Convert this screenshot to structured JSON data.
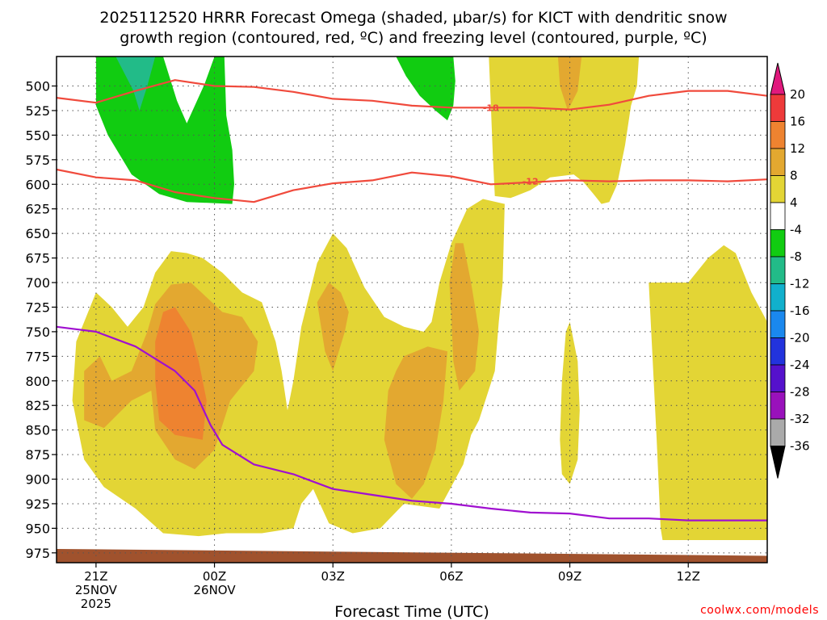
{
  "title_lines": [
    "2025112520 HRRR Forecast Omega (shaded, µbar/s) for KICT with dendritic snow",
    "growth region (contoured, red, ºC) and freezing level (contoured, purple, ºC)"
  ],
  "credit": "coolwx.com/models",
  "colors": {
    "dgz": "#f04a3c",
    "freezing": "#a010d0",
    "ground": "#a0522d",
    "grid": "#555555"
  },
  "chart_data": {
    "type": "contour",
    "xlabel": "Forecast Time (UTC)",
    "x_domain": [
      -1,
      17
    ],
    "y_domain": [
      470,
      985
    ],
    "y_axis": {
      "inverted": true,
      "ticks": [
        500,
        525,
        550,
        575,
        600,
        625,
        650,
        675,
        700,
        725,
        750,
        775,
        800,
        825,
        850,
        875,
        900,
        925,
        950,
        975
      ]
    },
    "x_ticks": [
      {
        "hour": 0,
        "lines": [
          "21Z",
          "25NOV",
          "2025"
        ]
      },
      {
        "hour": 3,
        "lines": [
          "00Z",
          "26NOV"
        ]
      },
      {
        "hour": 6,
        "lines": [
          "03Z"
        ]
      },
      {
        "hour": 9,
        "lines": [
          "06Z"
        ]
      },
      {
        "hour": 12,
        "lines": [
          "09Z"
        ]
      },
      {
        "hour": 15,
        "lines": [
          "12Z"
        ]
      }
    ],
    "grid": true,
    "colorbar": {
      "labels": [
        "20",
        "16",
        "12",
        "8",
        "4",
        "-4",
        "-8",
        "-12",
        "-16",
        "-20",
        "-24",
        "-28",
        "-32",
        "-36"
      ],
      "bins": [
        {
          "color": "#ee3a3a"
        },
        {
          "color": "#ee8330"
        },
        {
          "color": "#e3a830"
        },
        {
          "color": "#e3d535"
        },
        {
          "color": "#ffffff"
        },
        {
          "color": "#11cc11"
        },
        {
          "color": "#22bb88"
        },
        {
          "color": "#11b0cc"
        },
        {
          "color": "#1a88ee"
        },
        {
          "color": "#2233dd"
        },
        {
          "color": "#5511cc"
        },
        {
          "color": "#9911bb"
        },
        {
          "color": "#aaaaaa"
        }
      ],
      "top_color": "#e0197d",
      "bottom_color": "#000000"
    },
    "shaded_regions": [
      {
        "level": "-8 to -4",
        "color": "#11cc11",
        "points": [
          [
            0.0,
            470
          ],
          [
            0.0,
            520
          ],
          [
            0.3,
            550
          ],
          [
            0.9,
            590
          ],
          [
            1.6,
            610
          ],
          [
            2.3,
            618
          ],
          [
            3.45,
            620
          ],
          [
            3.5,
            600
          ],
          [
            3.45,
            565
          ],
          [
            3.3,
            530
          ],
          [
            3.25,
            470
          ],
          [
            3.0,
            470
          ],
          [
            2.75,
            498
          ],
          [
            2.3,
            538
          ],
          [
            2.05,
            515
          ],
          [
            1.7,
            470
          ]
        ]
      },
      {
        "level": "-12 to -8",
        "color": "#22bb88",
        "points": [
          [
            0.5,
            470
          ],
          [
            0.95,
            505
          ],
          [
            1.1,
            525
          ],
          [
            1.3,
            500
          ],
          [
            1.5,
            470
          ]
        ]
      },
      {
        "level": "-8 to -4",
        "color": "#11cc11",
        "points": [
          [
            7.6,
            470
          ],
          [
            7.85,
            490
          ],
          [
            8.2,
            510
          ],
          [
            8.6,
            525
          ],
          [
            8.9,
            535
          ],
          [
            9.05,
            520
          ],
          [
            9.1,
            495
          ],
          [
            9.05,
            470
          ]
        ]
      },
      {
        "level": "4 to 8",
        "color": "#e3d535",
        "points": [
          [
            9.95,
            470
          ],
          [
            10.0,
            520
          ],
          [
            10.05,
            570
          ],
          [
            10.1,
            612
          ],
          [
            10.5,
            614
          ],
          [
            11.0,
            606
          ],
          [
            11.5,
            593
          ],
          [
            12.1,
            590
          ],
          [
            12.35,
            598
          ],
          [
            12.6,
            610
          ],
          [
            12.8,
            620
          ],
          [
            13.0,
            618
          ],
          [
            13.2,
            600
          ],
          [
            13.4,
            560
          ],
          [
            13.55,
            520
          ],
          [
            13.7,
            500
          ],
          [
            13.75,
            470
          ]
        ]
      },
      {
        "level": "8 to 12",
        "color": "#e3a830",
        "points": [
          [
            11.7,
            470
          ],
          [
            11.75,
            500
          ],
          [
            11.95,
            525
          ],
          [
            12.2,
            505
          ],
          [
            12.3,
            470
          ]
        ]
      },
      {
        "level": "4 to 8",
        "color": "#e3d535",
        "points": [
          [
            0.0,
            710
          ],
          [
            -0.5,
            760
          ],
          [
            -0.6,
            820
          ],
          [
            -0.3,
            880
          ],
          [
            0.2,
            908
          ],
          [
            1.0,
            930
          ],
          [
            1.7,
            955
          ],
          [
            2.6,
            958
          ],
          [
            3.3,
            955
          ],
          [
            4.2,
            955
          ],
          [
            5.0,
            950
          ],
          [
            5.2,
            925
          ],
          [
            5.5,
            910
          ],
          [
            5.9,
            945
          ],
          [
            6.5,
            955
          ],
          [
            7.2,
            950
          ],
          [
            7.8,
            925
          ],
          [
            8.7,
            930
          ],
          [
            9.1,
            900
          ],
          [
            9.3,
            885
          ],
          [
            9.5,
            855
          ],
          [
            9.7,
            840
          ],
          [
            10.1,
            790
          ],
          [
            10.2,
            740
          ],
          [
            10.3,
            700
          ],
          [
            10.35,
            620
          ],
          [
            9.8,
            615
          ],
          [
            9.4,
            625
          ],
          [
            9.0,
            660
          ],
          [
            8.7,
            700
          ],
          [
            8.5,
            740
          ],
          [
            8.3,
            750
          ],
          [
            7.8,
            745
          ],
          [
            7.3,
            735
          ],
          [
            6.8,
            705
          ],
          [
            6.35,
            665
          ],
          [
            6.0,
            650
          ],
          [
            5.6,
            680
          ],
          [
            5.2,
            745
          ],
          [
            5.0,
            800
          ],
          [
            4.85,
            830
          ],
          [
            4.7,
            790
          ],
          [
            4.55,
            760
          ],
          [
            4.2,
            720
          ],
          [
            3.7,
            710
          ],
          [
            3.2,
            690
          ],
          [
            2.7,
            675
          ],
          [
            2.3,
            670
          ],
          [
            1.9,
            668
          ],
          [
            1.5,
            690
          ],
          [
            1.2,
            725
          ],
          [
            0.8,
            745
          ],
          [
            0.4,
            725
          ]
        ]
      },
      {
        "level": "8 to 12",
        "color": "#e3a830",
        "points": [
          [
            -0.3,
            790
          ],
          [
            -0.3,
            840
          ],
          [
            0.2,
            848
          ],
          [
            0.9,
            820
          ],
          [
            1.4,
            810
          ],
          [
            1.5,
            850
          ],
          [
            2.0,
            880
          ],
          [
            2.5,
            890
          ],
          [
            3.0,
            870
          ],
          [
            3.4,
            820
          ],
          [
            4.0,
            790
          ],
          [
            4.1,
            760
          ],
          [
            3.7,
            735
          ],
          [
            3.2,
            730
          ],
          [
            2.8,
            715
          ],
          [
            2.4,
            700
          ],
          [
            1.9,
            702
          ],
          [
            1.5,
            722
          ],
          [
            1.3,
            750
          ],
          [
            0.9,
            790
          ],
          [
            0.4,
            800
          ],
          [
            0.1,
            775
          ]
        ]
      },
      {
        "level": "12 to 16",
        "color": "#ee8330",
        "points": [
          [
            1.5,
            760
          ],
          [
            1.5,
            800
          ],
          [
            1.6,
            840
          ],
          [
            2.0,
            855
          ],
          [
            2.7,
            860
          ],
          [
            2.8,
            820
          ],
          [
            2.6,
            780
          ],
          [
            2.4,
            750
          ],
          [
            2.0,
            725
          ],
          [
            1.7,
            730
          ]
        ]
      },
      {
        "level": "8 to 12",
        "color": "#e3a830",
        "points": [
          [
            5.6,
            720
          ],
          [
            5.8,
            770
          ],
          [
            6.0,
            790
          ],
          [
            6.3,
            750
          ],
          [
            6.4,
            730
          ],
          [
            6.2,
            710
          ],
          [
            5.9,
            700
          ]
        ]
      },
      {
        "level": "8 to 12",
        "color": "#e3a830",
        "points": [
          [
            7.4,
            810
          ],
          [
            7.3,
            860
          ],
          [
            7.6,
            905
          ],
          [
            8.0,
            920
          ],
          [
            8.3,
            905
          ],
          [
            8.6,
            870
          ],
          [
            8.8,
            820
          ],
          [
            8.9,
            770
          ],
          [
            8.4,
            765
          ],
          [
            7.8,
            775
          ],
          [
            7.6,
            790
          ]
        ]
      },
      {
        "level": "8 to 12",
        "color": "#e3a830",
        "points": [
          [
            9.0,
            735
          ],
          [
            9.05,
            780
          ],
          [
            9.2,
            810
          ],
          [
            9.6,
            790
          ],
          [
            9.7,
            750
          ],
          [
            9.5,
            700
          ],
          [
            9.3,
            660
          ],
          [
            9.1,
            660
          ],
          [
            8.95,
            700
          ]
        ]
      },
      {
        "level": "4 to 8",
        "color": "#e3d535",
        "points": [
          [
            11.8,
            800
          ],
          [
            11.75,
            860
          ],
          [
            11.8,
            895
          ],
          [
            12.0,
            905
          ],
          [
            12.2,
            880
          ],
          [
            12.25,
            830
          ],
          [
            12.2,
            780
          ],
          [
            12.0,
            740
          ],
          [
            11.9,
            750
          ]
        ]
      },
      {
        "level": "4 to 8",
        "color": "#e3d535",
        "points": [
          [
            14.0,
            700
          ],
          [
            14.1,
            780
          ],
          [
            14.2,
            860
          ],
          [
            14.3,
            950
          ],
          [
            14.35,
            962
          ],
          [
            17.0,
            962
          ],
          [
            17.0,
            740
          ],
          [
            16.6,
            710
          ],
          [
            16.2,
            670
          ],
          [
            15.9,
            662
          ],
          [
            15.5,
            675
          ],
          [
            15.0,
            700
          ]
        ]
      }
    ],
    "series": [
      {
        "name": "-18",
        "color": "#f04a3c",
        "x": [
          -1.0,
          0.0,
          1.0,
          2.0,
          3.0,
          4.0,
          5.0,
          6.0,
          7.0,
          8.0,
          9.0,
          10.0,
          11.0,
          12.0,
          13.0,
          14.0,
          15.0,
          16.0,
          17.0
        ],
        "y": [
          512,
          517,
          505,
          494,
          500,
          501,
          506,
          513,
          515,
          520,
          522,
          522,
          522,
          524,
          519,
          510,
          505,
          505,
          510
        ]
      },
      {
        "name": "-12",
        "color": "#f04a3c",
        "x": [
          -1.0,
          0.0,
          1.0,
          2.0,
          3.0,
          4.0,
          5.0,
          6.0,
          7.0,
          8.0,
          9.0,
          10.0,
          11.0,
          12.0,
          13.0,
          14.0,
          15.0,
          16.0,
          17.0
        ],
        "y": [
          585,
          593,
          596,
          608,
          614,
          618,
          606,
          599,
          596,
          588,
          592,
          600,
          598,
          596,
          597,
          596,
          596,
          597,
          595
        ]
      },
      {
        "name": "0",
        "color": "#a010d0",
        "x": [
          -1.0,
          0.0,
          1.0,
          2.0,
          2.5,
          2.9,
          3.2,
          4.0,
          5.0,
          6.0,
          7.0,
          8.0,
          9.0,
          10.0,
          11.0,
          12.0,
          13.0,
          14.0,
          15.0,
          16.0,
          17.0
        ],
        "y": [
          745,
          750,
          765,
          790,
          810,
          845,
          865,
          885,
          895,
          910,
          916,
          922,
          925,
          930,
          934,
          935,
          940,
          940,
          942,
          942,
          942
        ]
      }
    ],
    "contour_labels": [
      {
        "text": "-18",
        "x": 10.0,
        "y": 522
      },
      {
        "text": "-12",
        "x": 11.0,
        "y": 597
      }
    ],
    "terrain": {
      "color": "#a0522d",
      "x": [
        -1,
        17
      ],
      "y": [
        971,
        978
      ]
    }
  }
}
